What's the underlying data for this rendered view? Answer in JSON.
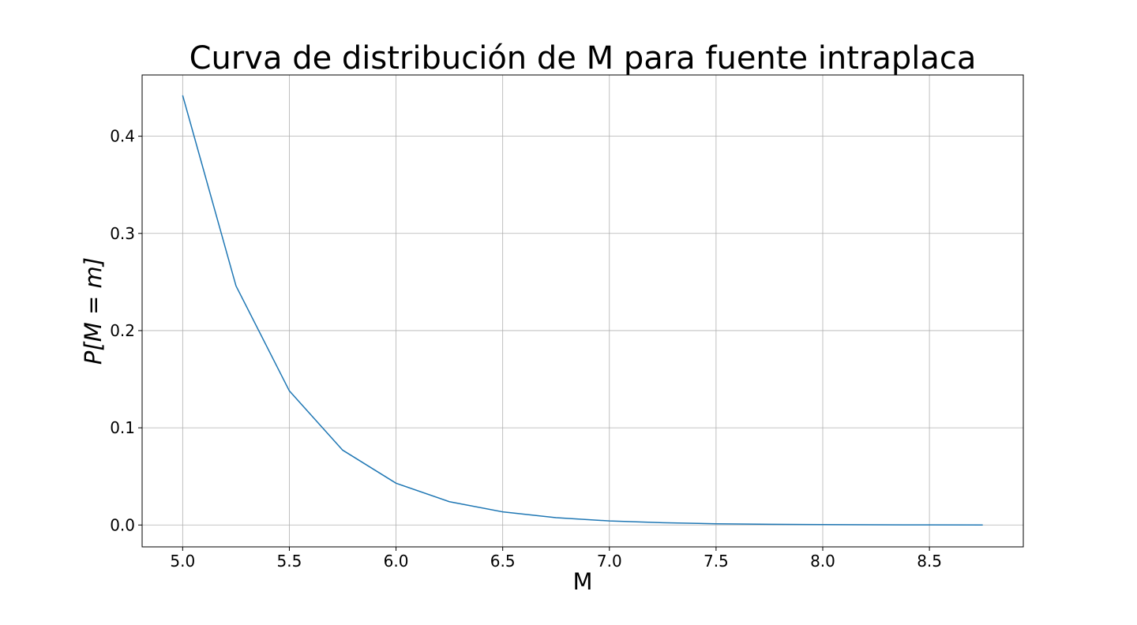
{
  "chart_data": {
    "type": "line",
    "title": "Curva de distribución de M para fuente intraplaca",
    "xlabel": "M",
    "ylabel": "P[M = m]",
    "xlim": [
      4.81,
      8.94
    ],
    "ylim": [
      -0.0225,
      0.463
    ],
    "x_ticks": [
      5.0,
      5.5,
      6.0,
      6.5,
      7.0,
      7.5,
      8.0,
      8.5
    ],
    "x_tick_labels": [
      "5.0",
      "5.5",
      "6.0",
      "6.5",
      "7.0",
      "7.5",
      "8.0",
      "8.5"
    ],
    "y_ticks": [
      0.0,
      0.1,
      0.2,
      0.3,
      0.4
    ],
    "y_tick_labels": [
      "0.0",
      "0.1",
      "0.2",
      "0.3",
      "0.4"
    ],
    "grid": true,
    "series": [
      {
        "color": "#1f77b4",
        "x": [
          5.0,
          5.25,
          5.5,
          5.75,
          6.0,
          6.25,
          6.5,
          6.75,
          7.0,
          7.25,
          7.5,
          7.75,
          8.0,
          8.25,
          8.5,
          8.75
        ],
        "y": [
          0.442,
          0.246,
          0.138,
          0.077,
          0.043,
          0.024,
          0.0135,
          0.0075,
          0.0042,
          0.0024,
          0.0013,
          0.0007,
          0.0004,
          0.0002,
          0.0001,
          0.0
        ]
      }
    ]
  }
}
